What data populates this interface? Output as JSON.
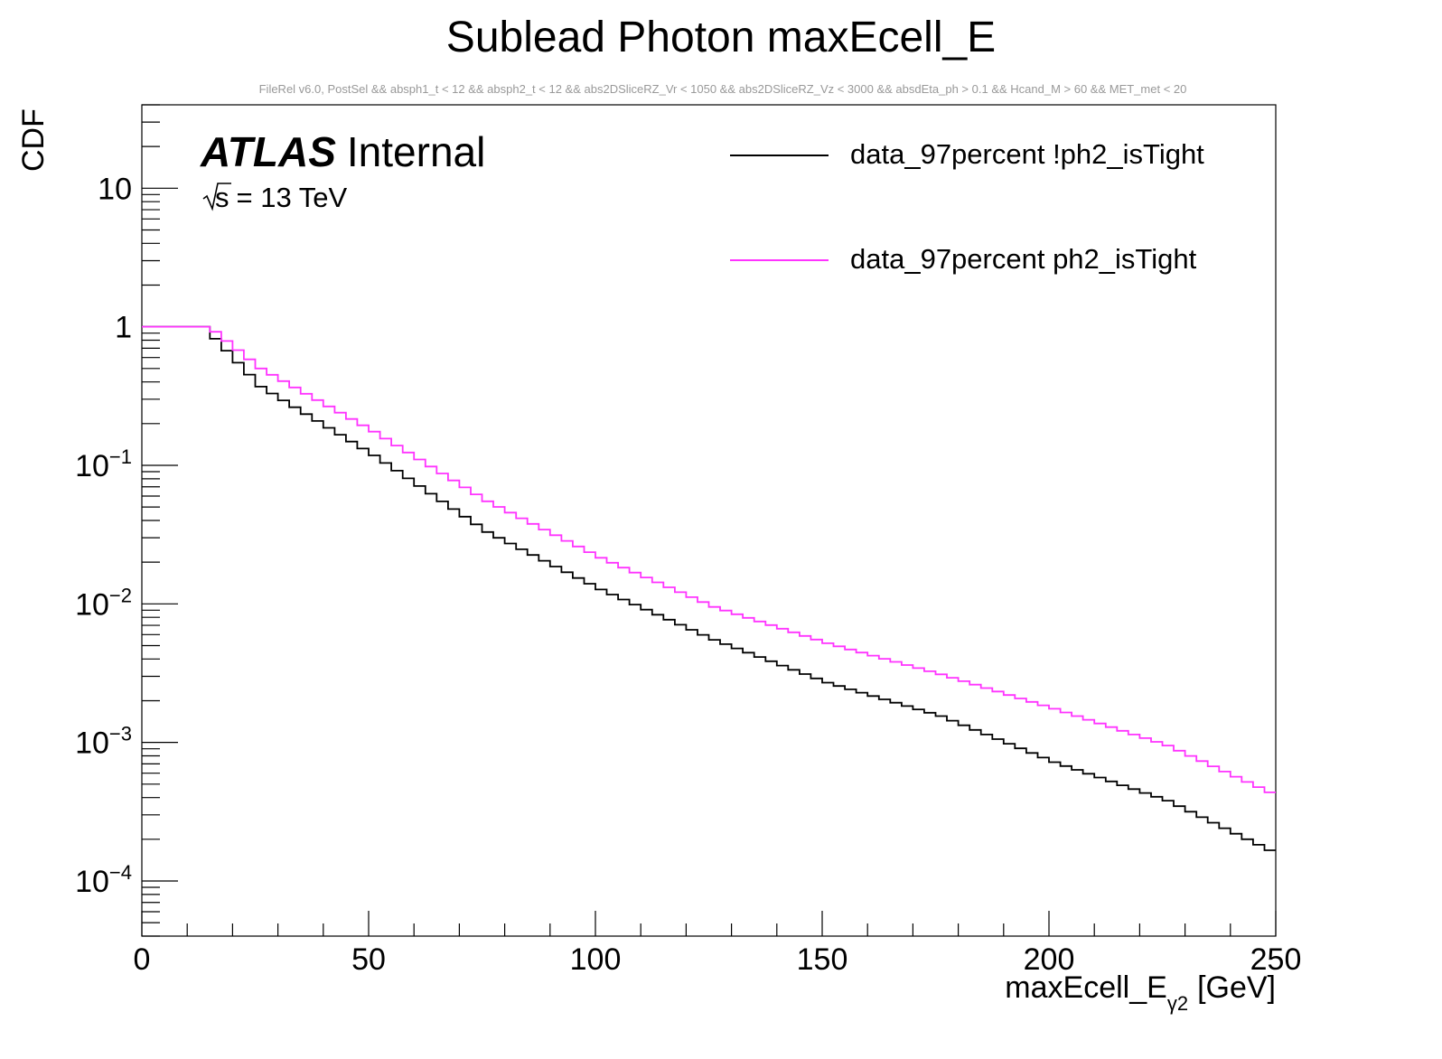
{
  "chart_data": {
    "type": "line",
    "title": "Sublead Photon maxEcell_E",
    "subtitle": "FileRel v6.0, PostSel &&  absph1_t < 12 && absph2_t < 12 && abs2DSliceRZ_Vr < 1050 && abs2DSliceRZ_Vz < 3000 && absdEta_ph > 0.1 && Hcand_M > 60 && MET_met < 20",
    "ylabel": "CDF",
    "xlabel_main": "maxEcell_E",
    "xlabel_sub": "γ2",
    "xlabel_unit": "[GeV]",
    "xlim": [
      0,
      250
    ],
    "ylim": [
      4e-05,
      40
    ],
    "yscale": "log",
    "x_ticks": [
      0,
      50,
      100,
      150,
      200,
      250
    ],
    "x_tick_labels": [
      "0",
      "50",
      "100",
      "150",
      "200",
      "250"
    ],
    "y_tick_labels": [
      {
        "base": "10",
        "exp": "",
        "value": 10
      },
      {
        "base": "1",
        "exp": "",
        "value": 1
      },
      {
        "base": "10",
        "exp": "−1",
        "value": 0.1
      },
      {
        "base": "10",
        "exp": "−2",
        "value": 0.01
      },
      {
        "base": "10",
        "exp": "−3",
        "value": 0.001
      },
      {
        "base": "10",
        "exp": "−4",
        "value": 0.0001
      }
    ],
    "annotation": {
      "experiment": "ATLAS",
      "status": "Internal",
      "energy_sqrt": "s",
      "energy_text": "= 13 TeV"
    },
    "legend_position": "top-right",
    "bin_width": 2.5,
    "series": [
      {
        "name": "data_97percent !ph2_isTight",
        "color": "#000000",
        "anchors": [
          [
            0,
            1
          ],
          [
            12.5,
            1
          ],
          [
            15,
            0.82
          ],
          [
            25,
            0.37
          ],
          [
            50,
            0.118
          ],
          [
            75,
            0.033
          ],
          [
            100,
            0.0127
          ],
          [
            125,
            0.0055
          ],
          [
            150,
            0.0027
          ],
          [
            175,
            0.00155
          ],
          [
            200,
            0.00072
          ],
          [
            225,
            0.00038
          ],
          [
            250,
            0.000152
          ]
        ]
      },
      {
        "name": "data_97percent ph2_isTight",
        "color": "#ff33ff",
        "anchors": [
          [
            0,
            1
          ],
          [
            12.5,
            1
          ],
          [
            15,
            0.92
          ],
          [
            25,
            0.5
          ],
          [
            50,
            0.175
          ],
          [
            75,
            0.055
          ],
          [
            100,
            0.0215
          ],
          [
            125,
            0.0095
          ],
          [
            150,
            0.0052
          ],
          [
            175,
            0.0031
          ],
          [
            200,
            0.00175
          ],
          [
            225,
            0.00095
          ],
          [
            250,
            0.0004
          ]
        ]
      }
    ]
  }
}
